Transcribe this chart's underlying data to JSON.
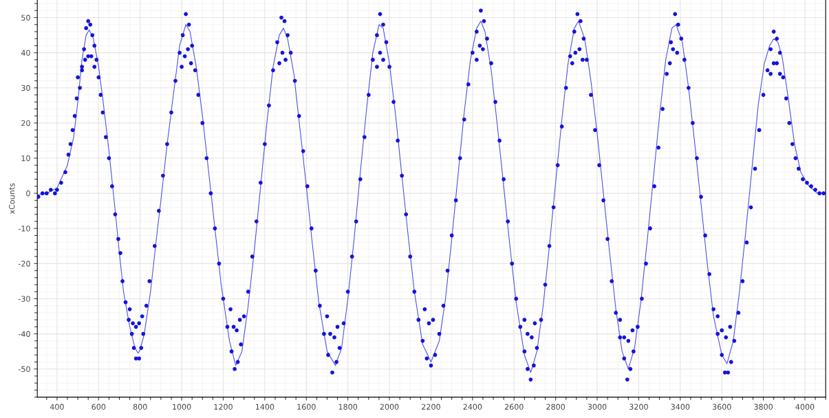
{
  "chart_data": {
    "type": "scatter",
    "ylabel": "xCounts",
    "xlim": [
      305,
      4100
    ],
    "ylim": [
      -58,
      55
    ],
    "xticks": [
      400,
      600,
      800,
      1000,
      1200,
      1400,
      1600,
      1800,
      2000,
      2200,
      2400,
      2600,
      2800,
      3000,
      3200,
      3400,
      3600,
      3800,
      4000
    ],
    "yticks": [
      -50,
      -40,
      -30,
      -20,
      -10,
      0,
      10,
      20,
      30,
      40,
      50
    ],
    "grid": true,
    "legend": false,
    "series": [
      {
        "marker": "circle",
        "color": "#1414dc",
        "x": [
          310,
          330,
          350,
          370,
          390,
          400,
          420,
          440,
          455,
          465,
          475,
          485,
          495,
          500,
          510,
          520,
          530,
          540,
          550,
          560,
          570,
          580,
          590,
          600,
          610,
          620,
          635,
          650,
          665,
          680,
          695,
          705,
          715,
          730,
          745,
          760,
          770,
          780,
          795,
          805,
          815,
          830,
          845,
          520,
          535,
          550,
          565,
          580,
          750,
          765,
          780,
          795,
          810,
          870,
          890,
          910,
          930,
          950,
          970,
          990,
          1005,
          1020,
          1035,
          1050,
          1065,
          1080,
          1100,
          1120,
          1140,
          1160,
          1180,
          1200,
          1220,
          1240,
          1255,
          1270,
          1285,
          1300,
          1320,
          1000,
          1015,
          1030,
          1045,
          1235,
          1250,
          1265,
          1280,
          1340,
          1360,
          1380,
          1400,
          1420,
          1440,
          1460,
          1480,
          1495,
          1510,
          1525,
          1545,
          1565,
          1585,
          1605,
          1625,
          1645,
          1665,
          1685,
          1705,
          1725,
          1745,
          1760,
          1780,
          1800,
          1470,
          1485,
          1500,
          1700,
          1715,
          1735,
          1750,
          1820,
          1840,
          1860,
          1880,
          1900,
          1920,
          1940,
          1955,
          1970,
          1985,
          2000,
          2020,
          2040,
          2060,
          2080,
          2100,
          2120,
          2140,
          2160,
          2180,
          2200,
          2220,
          2240,
          2260,
          2280,
          1940,
          1955,
          1970,
          2170,
          2190,
          2210,
          2300,
          2320,
          2340,
          2360,
          2380,
          2400,
          2420,
          2440,
          2455,
          2470,
          2490,
          2510,
          2530,
          2550,
          2570,
          2590,
          2610,
          2630,
          2650,
          2665,
          2680,
          2695,
          2710,
          2730,
          2750,
          2420,
          2435,
          2450,
          2650,
          2665,
          2685,
          2700,
          2770,
          2790,
          2810,
          2830,
          2850,
          2870,
          2890,
          2905,
          2920,
          2935,
          2950,
          2970,
          2990,
          3010,
          3030,
          3050,
          3070,
          3090,
          3110,
          3130,
          3145,
          3160,
          3175,
          3195,
          3215,
          2880,
          2895,
          2915,
          2930,
          3110,
          3130,
          3150,
          3170,
          3235,
          3255,
          3275,
          3295,
          3315,
          3335,
          3355,
          3375,
          3390,
          3405,
          3420,
          3440,
          3460,
          3480,
          3500,
          3520,
          3540,
          3560,
          3580,
          3600,
          3615,
          3630,
          3645,
          3660,
          3680,
          3700,
          3350,
          3365,
          3385,
          3580,
          3600,
          3620,
          3640,
          3720,
          3740,
          3760,
          3780,
          3800,
          3820,
          3835,
          3850,
          3865,
          3880,
          3895,
          3910,
          3925,
          3940,
          3955,
          3970,
          3990,
          4010,
          4030,
          4050,
          4070,
          4090,
          3835,
          3850,
          3865,
          3880
        ],
        "values": [
          -1,
          0,
          0,
          1,
          0,
          1,
          3,
          6,
          11,
          14,
          18,
          22,
          27,
          33,
          30,
          36,
          41,
          47,
          49,
          48,
          45,
          42,
          38,
          33,
          28,
          23,
          16,
          10,
          2,
          -6,
          -13,
          -17,
          -25,
          -31,
          -36,
          -40,
          -44,
          -47,
          -47,
          -44,
          -40,
          -32,
          -25,
          35,
          38,
          39,
          39,
          36,
          -33,
          -37,
          -38,
          -37,
          -35,
          -15,
          -5,
          5,
          14,
          23,
          32,
          40,
          45,
          51,
          48,
          42,
          35,
          28,
          20,
          10,
          0,
          -10,
          -20,
          -30,
          -38,
          -45,
          -50,
          -48,
          -43,
          -35,
          -28,
          36,
          39,
          41,
          37,
          -33,
          -38,
          -39,
          -36,
          -18,
          -8,
          3,
          14,
          25,
          35,
          43,
          50,
          49,
          45,
          40,
          32,
          22,
          12,
          2,
          -10,
          -22,
          -32,
          -40,
          -46,
          -51,
          -48,
          -44,
          -37,
          -28,
          37,
          40,
          38,
          -35,
          -40,
          -41,
          -38,
          -18,
          -8,
          4,
          16,
          28,
          38,
          45,
          51,
          48,
          43,
          36,
          26,
          15,
          5,
          -6,
          -18,
          -28,
          -36,
          -42,
          -47,
          -49,
          -46,
          -40,
          -32,
          -22,
          36,
          40,
          38,
          -33,
          -37,
          -36,
          -12,
          -2,
          10,
          21,
          31,
          40,
          46,
          52,
          49,
          44,
          37,
          26,
          15,
          4,
          -8,
          -20,
          -30,
          -38,
          -45,
          -50,
          -53,
          -49,
          -44,
          -36,
          -26,
          38,
          42,
          41,
          -36,
          -40,
          -41,
          -37,
          -15,
          -4,
          8,
          19,
          30,
          39,
          46,
          51,
          49,
          44,
          38,
          28,
          18,
          8,
          -2,
          -13,
          -25,
          -34,
          -41,
          -47,
          -53,
          -50,
          -45,
          -38,
          -30,
          37,
          40,
          41,
          38,
          -36,
          -41,
          -42,
          -39,
          -20,
          -10,
          2,
          13,
          24,
          34,
          43,
          51,
          48,
          44,
          38,
          30,
          20,
          10,
          -1,
          -12,
          -23,
          -33,
          -40,
          -46,
          -51,
          -51,
          -48,
          -42,
          -34,
          -25,
          37,
          41,
          40,
          -35,
          -39,
          -41,
          -38,
          -14,
          -4,
          7,
          18,
          28,
          35,
          41,
          46,
          44,
          40,
          33,
          27,
          20,
          14,
          10,
          7,
          4,
          3,
          2,
          1,
          0,
          0,
          34,
          37,
          37,
          34
        ]
      },
      {
        "type": "line",
        "marker": "none",
        "line_style": "solid",
        "color": "#5050e6",
        "x": [
          305,
          350,
          400,
          450,
          480,
          500,
          520,
          540,
          555,
          575,
          600,
          620,
          650,
          680,
          700,
          720,
          750,
          775,
          790,
          800,
          820,
          850,
          880,
          900,
          930,
          960,
          990,
          1020,
          1040,
          1070,
          1100,
          1130,
          1160,
          1190,
          1230,
          1260,
          1290,
          1320,
          1350,
          1380,
          1410,
          1440,
          1470,
          1490,
          1510,
          1540,
          1570,
          1600,
          1630,
          1660,
          1700,
          1740,
          1770,
          1800,
          1830,
          1860,
          1890,
          1920,
          1950,
          1970,
          2000,
          2030,
          2060,
          2090,
          2120,
          2160,
          2200,
          2240,
          2270,
          2300,
          2330,
          2360,
          2390,
          2420,
          2440,
          2460,
          2490,
          2520,
          2550,
          2580,
          2610,
          2650,
          2680,
          2710,
          2740,
          2770,
          2800,
          2830,
          2860,
          2890,
          2910,
          2940,
          2970,
          3000,
          3030,
          3060,
          3090,
          3120,
          3150,
          3180,
          3210,
          3240,
          3270,
          3300,
          3330,
          3360,
          3380,
          3410,
          3440,
          3470,
          3500,
          3530,
          3560,
          3600,
          3625,
          3655,
          3685,
          3715,
          3745,
          3775,
          3805,
          3830,
          3850,
          3870,
          3890,
          3920,
          3950,
          3980,
          4020,
          4060,
          4100
        ],
        "values": [
          -0.5,
          0,
          1.5,
          8,
          16,
          26,
          38,
          45,
          46.5,
          44,
          36,
          27,
          12,
          -5,
          -17,
          -28,
          -38,
          -44,
          -45.5,
          -44.5,
          -40,
          -28,
          -12,
          -2,
          14,
          28,
          42,
          48,
          46,
          36,
          22,
          6,
          -10,
          -26,
          -42,
          -49,
          -45,
          -32,
          -16,
          2,
          20,
          36,
          45,
          47,
          44,
          34,
          18,
          2,
          -15,
          -31,
          -45,
          -49,
          -44,
          -30,
          -13,
          6,
          24,
          40,
          48,
          47,
          37,
          22,
          5,
          -12,
          -28,
          -43,
          -48,
          -42,
          -30,
          -13,
          5,
          23,
          38,
          47,
          49,
          46,
          35,
          19,
          2,
          -15,
          -31,
          -46,
          -51,
          -45,
          -32,
          -15,
          3,
          21,
          37,
          47,
          49,
          44,
          32,
          17,
          0,
          -17,
          -33,
          -45,
          -50,
          -44,
          -31,
          -14,
          4,
          22,
          38,
          47,
          48,
          43,
          30,
          14,
          -3,
          -20,
          -35,
          -46,
          -48.5,
          -42,
          -28,
          -11,
          7,
          25,
          37,
          42,
          44,
          43,
          39,
          27,
          14,
          6,
          2,
          0,
          0
        ]
      }
    ]
  }
}
